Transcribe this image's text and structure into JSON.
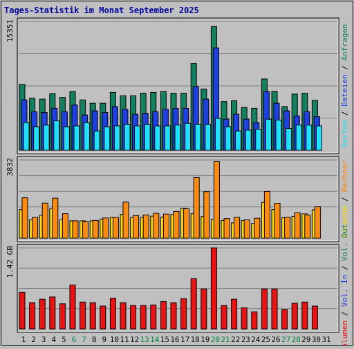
{
  "chart_data": {
    "type": "bar",
    "title": "Tages-Statistik im Monat September 2025",
    "colors": {
      "background": "#c0c0c0",
      "title": "#0000a0",
      "anfragen": "#138060",
      "dateien": "#1f40e0",
      "seiten": "#20e0ff",
      "besuche": "#ffd800",
      "rechner": "#ff8c10",
      "volumen": "#e81414",
      "weekend_label": "#008040",
      "weekday_label": "#000000"
    },
    "days": [
      "1",
      "2",
      "3",
      "4",
      "5",
      "6",
      "7",
      "8",
      "9",
      "10",
      "11",
      "12",
      "13",
      "14",
      "15",
      "16",
      "17",
      "18",
      "19",
      "20",
      "21",
      "22",
      "23",
      "24",
      "25",
      "26",
      "27",
      "28",
      "29",
      "30",
      "31"
    ],
    "weekend_days": [
      "6",
      "7",
      "13",
      "14",
      "20",
      "21",
      "27",
      "28"
    ],
    "panels": [
      {
        "id": "hits",
        "ymax_label": "15351",
        "ymax": 15351,
        "ylabel_parts": [
          {
            "text": "Seiten",
            "color": "#20e0ff"
          },
          {
            "text": " / ",
            "color": "#000000"
          },
          {
            "text": "Dateien",
            "color": "#1f40e0"
          },
          {
            "text": " / ",
            "color": "#000000"
          },
          {
            "text": "Anfragen",
            "color": "#138060"
          }
        ],
        "series": [
          {
            "name": "Anfragen",
            "color": "#138060",
            "values": [
              7850,
              6200,
              6100,
              6750,
              6300,
              7000,
              6000,
              5600,
              5600,
              6900,
              6500,
              6500,
              6800,
              6900,
              7000,
              6800,
              6800,
              10350,
              7300,
              14750,
              5800,
              5900,
              5100,
              5000,
              8500,
              7000,
              5200,
              6700,
              6800,
              5950
            ]
          },
          {
            "name": "Dateien",
            "color": "#1f40e0",
            "values": [
              6000,
              4600,
              4500,
              5000,
              4600,
              5400,
              4200,
              4700,
              4500,
              5200,
              4900,
              4300,
              4400,
              4600,
              4900,
              5000,
              5000,
              7600,
              6100,
              12200,
              3700,
              4300,
              3700,
              3300,
              7000,
              5600,
              4700,
              4100,
              4600,
              4000
            ]
          },
          {
            "name": "Seiten",
            "color": "#20e0ff",
            "values": [
              3300,
              2800,
              3000,
              3500,
              2800,
              2900,
              3300,
              2300,
              2800,
              2900,
              3100,
              2900,
              3100,
              2900,
              2900,
              3000,
              3200,
              3100,
              3100,
              3800,
              2800,
              2300,
              2400,
              2500,
              3700,
              3600,
              2600,
              3000,
              3000,
              2900
            ]
          }
        ]
      },
      {
        "id": "visits",
        "ymax_label": "3832",
        "ymax": 3832,
        "ylabel_parts": [
          {
            "text": "Besuche",
            "color": "#ffd800"
          },
          {
            "text": " / ",
            "color": "#000000"
          },
          {
            "text": "Rechner",
            "color": "#ff8c10"
          }
        ],
        "series": [
          {
            "name": "Besuche",
            "color": "#ffd800",
            "values": [
              1400,
              900,
              1120,
              1440,
              900,
              850,
              850,
              850,
              940,
              1020,
              1160,
              1020,
              1020,
              1080,
              1040,
              1160,
              1460,
              1200,
              1060,
              920,
              870,
              750,
              860,
              720,
              1760,
              1400,
              1000,
              1070,
              1190,
              1390
            ]
          },
          {
            "name": "Rechner",
            "color": "#ff8c10",
            "values": [
              1980,
              1020,
              1720,
              1960,
              1200,
              850,
              820,
              870,
              990,
              1020,
              1770,
              1110,
              1140,
              1220,
              1180,
              1310,
              1440,
              2970,
              2280,
              3750,
              960,
              1030,
              900,
              980,
              2290,
              1710,
              1030,
              1250,
              1140,
              1540
            ]
          }
        ]
      },
      {
        "id": "volume",
        "ymax_label": "1.42 GB",
        "ymax": 1.42,
        "ylabel_parts": [
          {
            "text": "Volumen",
            "color": "#e81414"
          },
          {
            "text": " / ",
            "color": "#000000"
          },
          {
            "text": "Vol. In",
            "color": "#1f40e0"
          },
          {
            "text": " / ",
            "color": "#000000"
          },
          {
            "text": "Vol. Out",
            "color": "#138060"
          }
        ],
        "series": [
          {
            "name": "Volumen",
            "color": "#e81414",
            "values": [
              0.64,
              0.46,
              0.52,
              0.56,
              0.44,
              0.77,
              0.47,
              0.46,
              0.4,
              0.54,
              0.46,
              0.41,
              0.41,
              0.42,
              0.48,
              0.46,
              0.53,
              0.88,
              0.7,
              1.42,
              0.41,
              0.52,
              0.37,
              0.3,
              0.7,
              0.7,
              0.34,
              0.45,
              0.47,
              0.4
            ]
          }
        ]
      }
    ]
  }
}
